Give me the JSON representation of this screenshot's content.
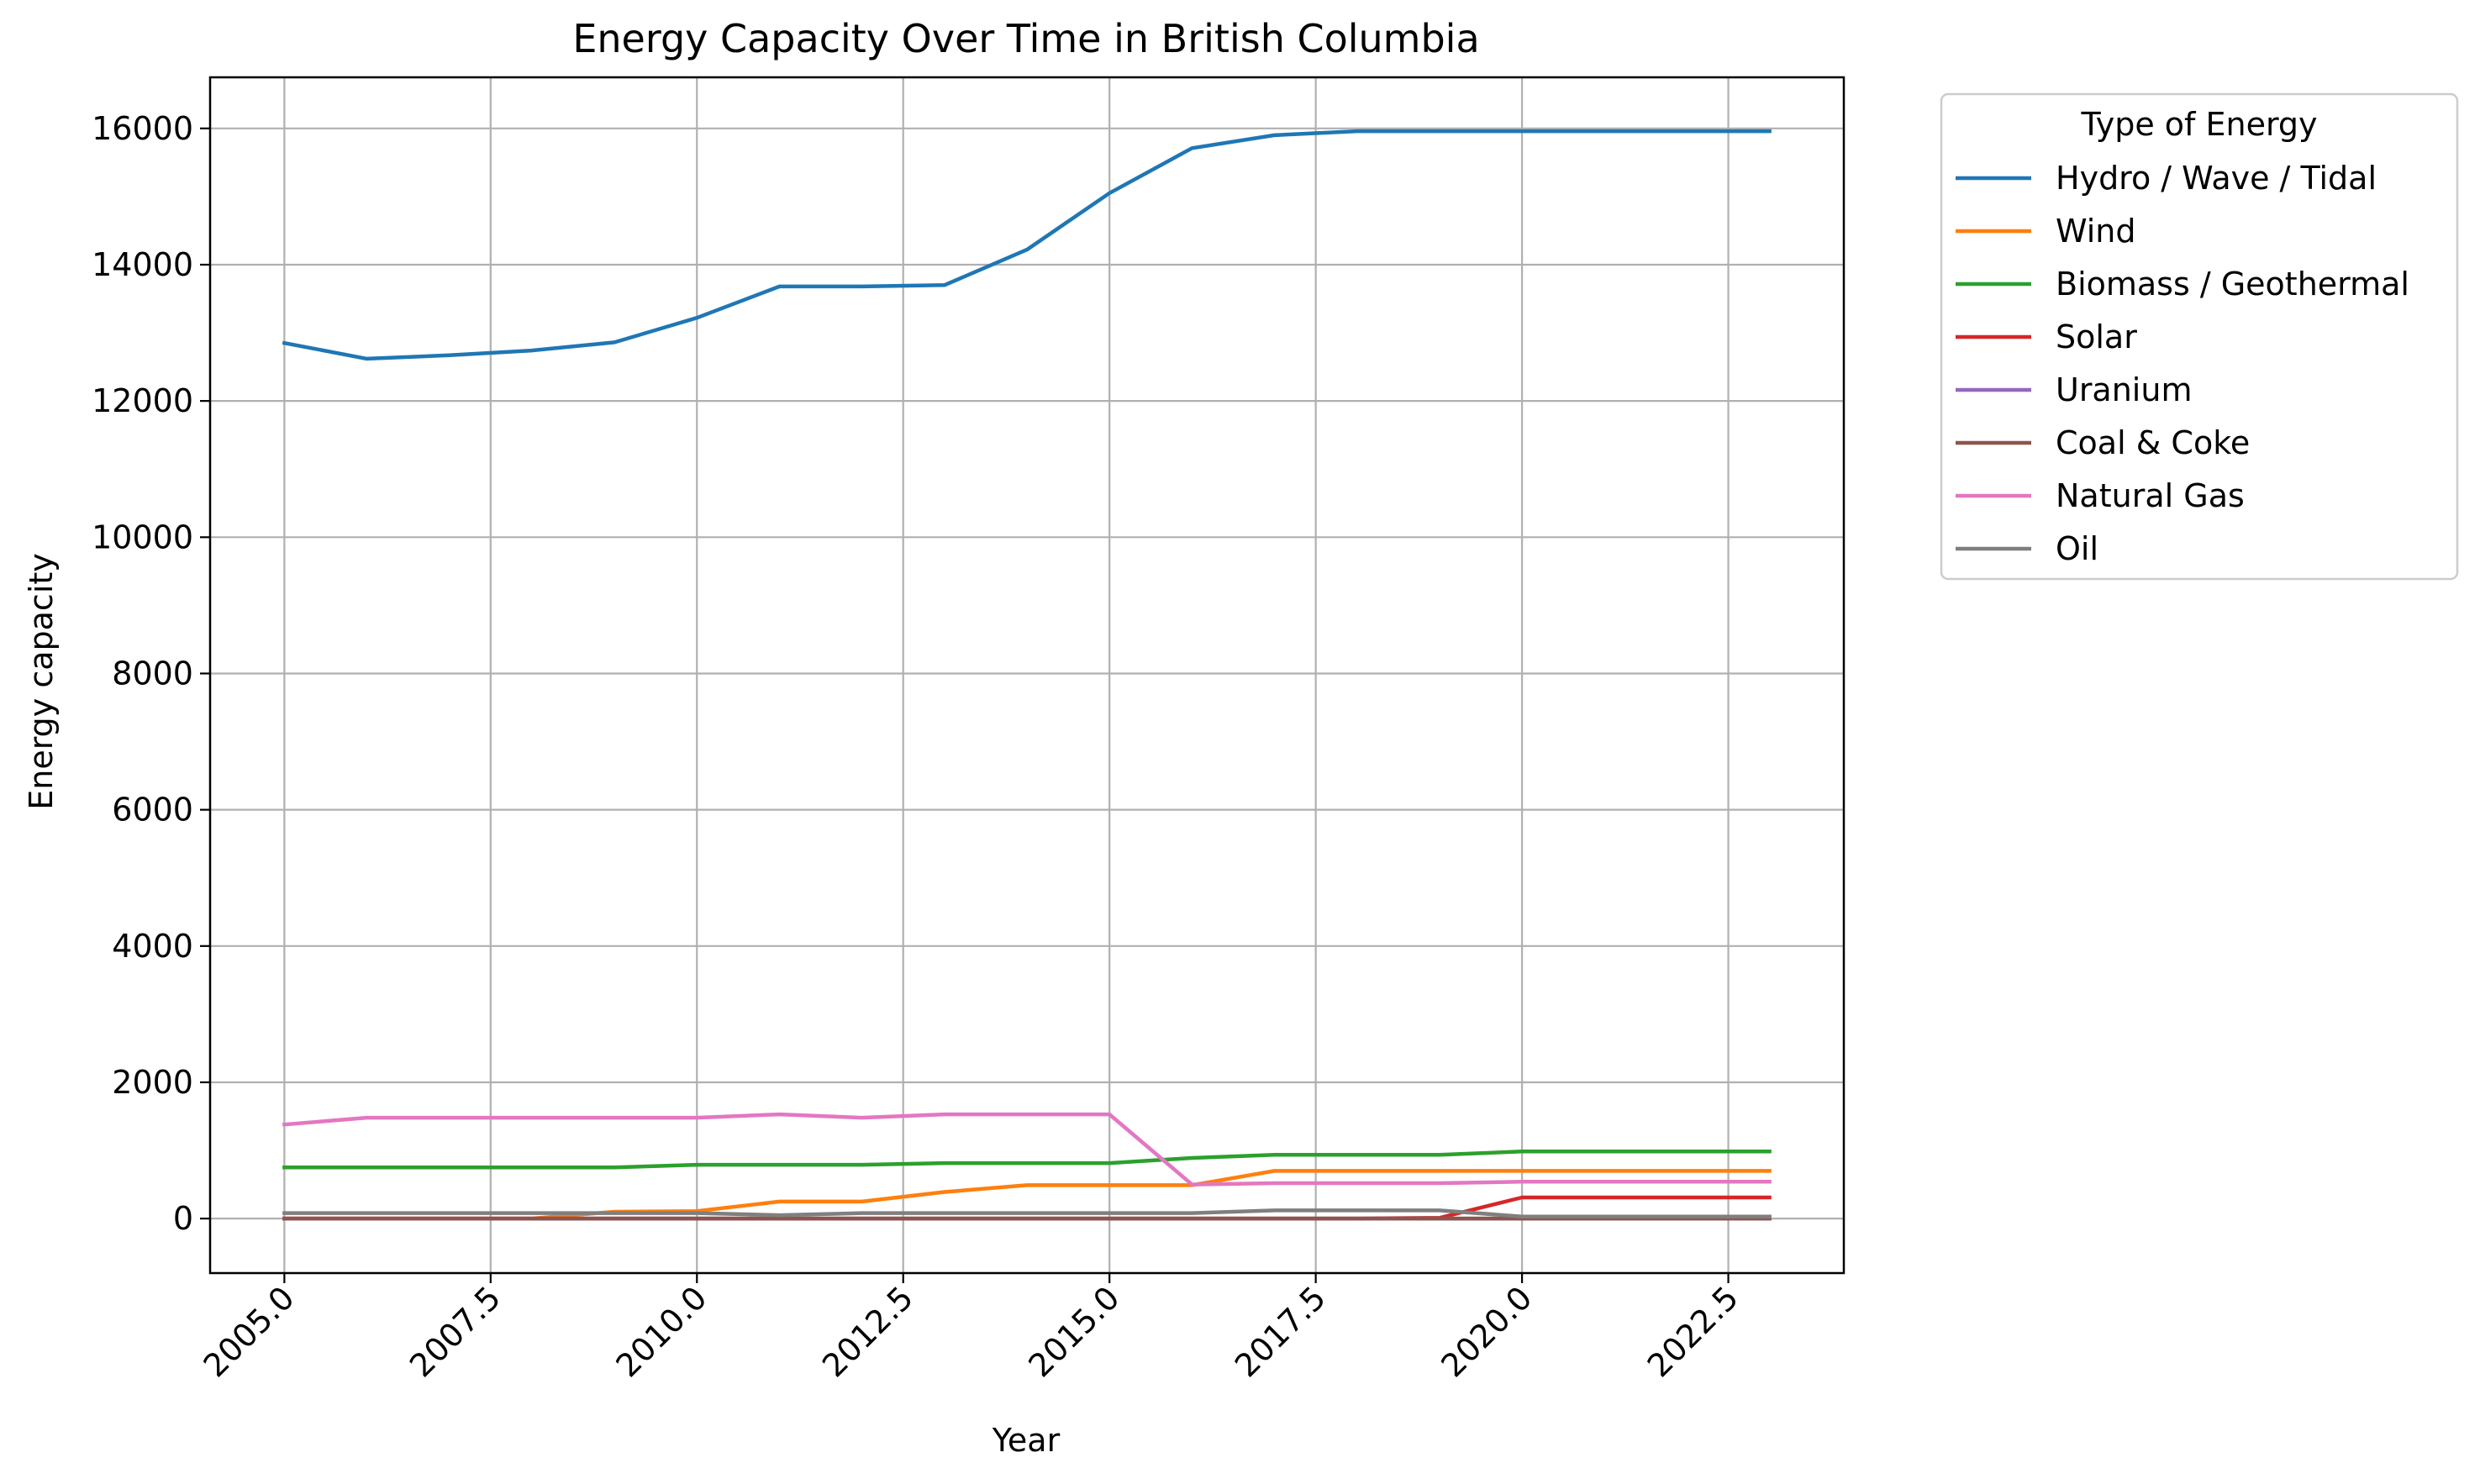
{
  "chart_data": {
    "type": "line",
    "title": "Energy Capacity Over Time in British Columbia",
    "xlabel": "Year",
    "ylabel": "Energy capacity",
    "xlim": [
      2004.1,
      2023.9
    ],
    "ylim": [
      -800,
      16750
    ],
    "x_ticks": [
      2005.0,
      2007.5,
      2010.0,
      2012.5,
      2015.0,
      2017.5,
      2020.0,
      2022.5
    ],
    "x_tick_labels": [
      "2005.0",
      "2007.5",
      "2010.0",
      "2012.5",
      "2015.0",
      "2017.5",
      "2020.0",
      "2022.5"
    ],
    "y_ticks": [
      0,
      2000,
      4000,
      6000,
      8000,
      10000,
      12000,
      14000,
      16000
    ],
    "y_tick_labels": [
      "0",
      "2000",
      "4000",
      "6000",
      "8000",
      "10000",
      "12000",
      "14000",
      "16000"
    ],
    "grid": true,
    "legend": {
      "title": "Type of Energy",
      "placement": "outside upper right"
    },
    "x": [
      2005,
      2006,
      2007,
      2008,
      2009,
      2010,
      2011,
      2012,
      2013,
      2014,
      2015,
      2016,
      2017,
      2018,
      2019,
      2020,
      2021,
      2022,
      2023
    ],
    "series": [
      {
        "name": "Hydro / Wave / Tidal",
        "color": "#1f77b4",
        "values": [
          12850,
          12620,
          12670,
          12740,
          12860,
          13220,
          13680,
          13680,
          13700,
          14220,
          15050,
          15710,
          15900,
          15960,
          15960,
          15960,
          15960,
          15960,
          15960
        ]
      },
      {
        "name": "Wind",
        "color": "#ff7f0e",
        "values": [
          0,
          0,
          0,
          0,
          100,
          110,
          250,
          250,
          390,
          490,
          490,
          490,
          700,
          700,
          700,
          700,
          700,
          700,
          700
        ]
      },
      {
        "name": "Biomass / Geothermal",
        "color": "#2ca02c",
        "values": [
          750,
          750,
          750,
          750,
          750,
          790,
          790,
          790,
          815,
          815,
          815,
          890,
          935,
          935,
          935,
          985,
          985,
          985,
          985
        ]
      },
      {
        "name": "Solar",
        "color": "#d62728",
        "values": [
          0,
          0,
          0,
          0,
          0,
          0,
          0,
          0,
          0,
          0,
          0,
          0,
          0,
          0,
          10,
          310,
          310,
          310,
          310
        ]
      },
      {
        "name": "Uranium",
        "color": "#9467bd",
        "values": [
          0,
          0,
          0,
          0,
          0,
          0,
          0,
          0,
          0,
          0,
          0,
          0,
          0,
          0,
          0,
          0,
          0,
          0,
          0
        ]
      },
      {
        "name": "Coal & Coke",
        "color": "#8c564b",
        "values": [
          0,
          0,
          0,
          0,
          0,
          0,
          0,
          0,
          0,
          0,
          0,
          0,
          0,
          0,
          0,
          0,
          0,
          0,
          0
        ]
      },
      {
        "name": "Natural Gas",
        "color": "#e377c2",
        "values": [
          1380,
          1480,
          1480,
          1480,
          1480,
          1480,
          1530,
          1480,
          1530,
          1530,
          1530,
          500,
          520,
          520,
          520,
          540,
          540,
          540,
          540
        ]
      },
      {
        "name": "Oil",
        "color": "#7f7f7f",
        "values": [
          80,
          80,
          80,
          80,
          80,
          80,
          50,
          80,
          80,
          80,
          80,
          80,
          120,
          120,
          120,
          30,
          30,
          30,
          30
        ]
      }
    ]
  }
}
